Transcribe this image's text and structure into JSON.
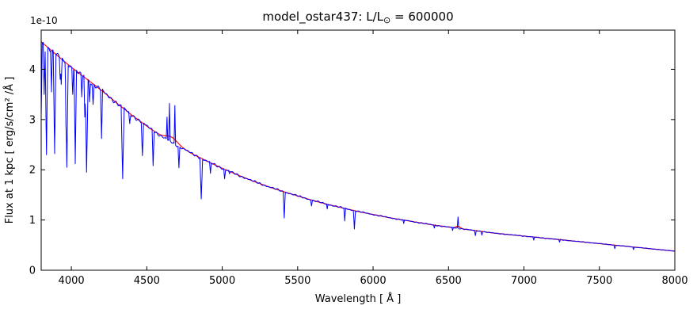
{
  "figure": {
    "title_parts": {
      "prefix": "model_ostar437: L/L",
      "sun": "⊙",
      "suffix": " = 600000"
    }
  },
  "chart_data": {
    "type": "line",
    "title": "model_ostar437: L/L⊙ = 600000",
    "xlabel": "Wavelength [ Å ]",
    "ylabel": "Flux at 1 kpc [ erg/s/cm² /Å ]",
    "y_offset_label": "1e-10",
    "y_unit_scale": "1e-10",
    "xlim": [
      3800,
      8000
    ],
    "ylim": [
      0,
      4.78
    ],
    "xticks": [
      4000,
      4500,
      5000,
      5500,
      6000,
      6500,
      7000,
      7500,
      8000
    ],
    "yticks": [
      0,
      1,
      2,
      3,
      4
    ],
    "grid": false,
    "legend": "none",
    "series": [
      {
        "name": "observed spectrum",
        "color": "#0000ff"
      },
      {
        "name": "continuum model fit",
        "color": "#ff1a1a"
      }
    ],
    "continuum_points": [
      [
        3800,
        4.55
      ],
      [
        3900,
        4.29
      ],
      [
        4000,
        4.04
      ],
      [
        4100,
        3.81
      ],
      [
        4200,
        3.58
      ],
      [
        4300,
        3.33
      ],
      [
        4400,
        3.09
      ],
      [
        4500,
        2.87
      ],
      [
        4600,
        2.66
      ],
      [
        4700,
        2.49
      ],
      [
        4800,
        2.32
      ],
      [
        4900,
        2.17
      ],
      [
        5000,
        2.03
      ],
      [
        5100,
        1.9
      ],
      [
        5200,
        1.78
      ],
      [
        5300,
        1.67
      ],
      [
        5400,
        1.57
      ],
      [
        5500,
        1.48
      ],
      [
        5600,
        1.39
      ],
      [
        5700,
        1.31
      ],
      [
        5800,
        1.24
      ],
      [
        5900,
        1.17
      ],
      [
        6000,
        1.11
      ],
      [
        6100,
        1.05
      ],
      [
        6200,
        1.0
      ],
      [
        6300,
        0.95
      ],
      [
        6400,
        0.9
      ],
      [
        6500,
        0.86
      ],
      [
        6600,
        0.82
      ],
      [
        6700,
        0.78
      ],
      [
        6800,
        0.74
      ],
      [
        6900,
        0.71
      ],
      [
        7000,
        0.68
      ],
      [
        7100,
        0.65
      ],
      [
        7200,
        0.62
      ],
      [
        7300,
        0.59
      ],
      [
        7400,
        0.56
      ],
      [
        7500,
        0.53
      ],
      [
        7600,
        0.5
      ],
      [
        7700,
        0.47
      ],
      [
        7800,
        0.44
      ],
      [
        7900,
        0.41
      ],
      [
        8000,
        0.38
      ]
    ],
    "spectral_lines": [
      {
        "wl": 3798,
        "tip": 2.6,
        "w": 9
      },
      {
        "wl": 3820,
        "tip": 3.5,
        "w": 7
      },
      {
        "wl": 3835,
        "tip": 2.3,
        "w": 9
      },
      {
        "wl": 3868,
        "tip": 3.55,
        "w": 6
      },
      {
        "wl": 3889,
        "tip": 2.32,
        "w": 9
      },
      {
        "wl": 3926,
        "tip": 3.8,
        "w": 6
      },
      {
        "wl": 3933,
        "tip": 3.7,
        "w": 6
      },
      {
        "wl": 3964,
        "tip": 3.3,
        "w": 6
      },
      {
        "wl": 3970,
        "tip": 2.05,
        "w": 9
      },
      {
        "wl": 4009,
        "tip": 3.5,
        "w": 6
      },
      {
        "wl": 4026,
        "tip": 2.12,
        "w": 8
      },
      {
        "wl": 4069,
        "tip": 3.45,
        "w": 6
      },
      {
        "wl": 4089,
        "tip": 3.05,
        "w": 6
      },
      {
        "wl": 4101,
        "tip": 1.95,
        "w": 10
      },
      {
        "wl": 4121,
        "tip": 3.35,
        "w": 6
      },
      {
        "wl": 4144,
        "tip": 3.3,
        "w": 7
      },
      {
        "wl": 4200,
        "tip": 2.62,
        "w": 7
      },
      {
        "wl": 4340,
        "tip": 1.82,
        "w": 10
      },
      {
        "wl": 4387,
        "tip": 2.92,
        "w": 7
      },
      {
        "wl": 4471,
        "tip": 2.28,
        "w": 8
      },
      {
        "wl": 4542,
        "tip": 2.08,
        "w": 7
      },
      {
        "wl": 4634,
        "tip": 3.05,
        "w": 5
      },
      {
        "wl": 4650,
        "tip": 3.32,
        "w": 5
      },
      {
        "wl": 4686,
        "tip": 3.28,
        "w": 5
      },
      {
        "wl": 4713,
        "tip": 2.04,
        "w": 6
      },
      {
        "wl": 4861,
        "tip": 1.42,
        "w": 9
      },
      {
        "wl": 4922,
        "tip": 1.93,
        "w": 6
      },
      {
        "wl": 5016,
        "tip": 1.82,
        "w": 6
      },
      {
        "wl": 5048,
        "tip": 1.92,
        "w": 5
      },
      {
        "wl": 5411,
        "tip": 1.04,
        "w": 7
      },
      {
        "wl": 5592,
        "tip": 1.28,
        "w": 6
      },
      {
        "wl": 5696,
        "tip": 1.22,
        "w": 5
      },
      {
        "wl": 5812,
        "tip": 0.98,
        "w": 6
      },
      {
        "wl": 5876,
        "tip": 0.82,
        "w": 7
      },
      {
        "wl": 6203,
        "tip": 0.93,
        "w": 5
      },
      {
        "wl": 6406,
        "tip": 0.84,
        "w": 5
      },
      {
        "wl": 6527,
        "tip": 0.79,
        "w": 5
      },
      {
        "wl": 6563,
        "tip": 1.06,
        "w": 5
      },
      {
        "wl": 6678,
        "tip": 0.69,
        "w": 6
      },
      {
        "wl": 6721,
        "tip": 0.7,
        "w": 5
      },
      {
        "wl": 7065,
        "tip": 0.6,
        "w": 6
      },
      {
        "wl": 7236,
        "tip": 0.56,
        "w": 5
      },
      {
        "wl": 7602,
        "tip": 0.43,
        "w": 6
      },
      {
        "wl": 7726,
        "tip": 0.41,
        "w": 5
      }
    ],
    "fit_bumps": [
      {
        "wl": 4665,
        "amp": 0.1,
        "sigma": 55
      },
      {
        "wl": 6563,
        "amp": 0.04,
        "sigma": 20
      }
    ]
  }
}
